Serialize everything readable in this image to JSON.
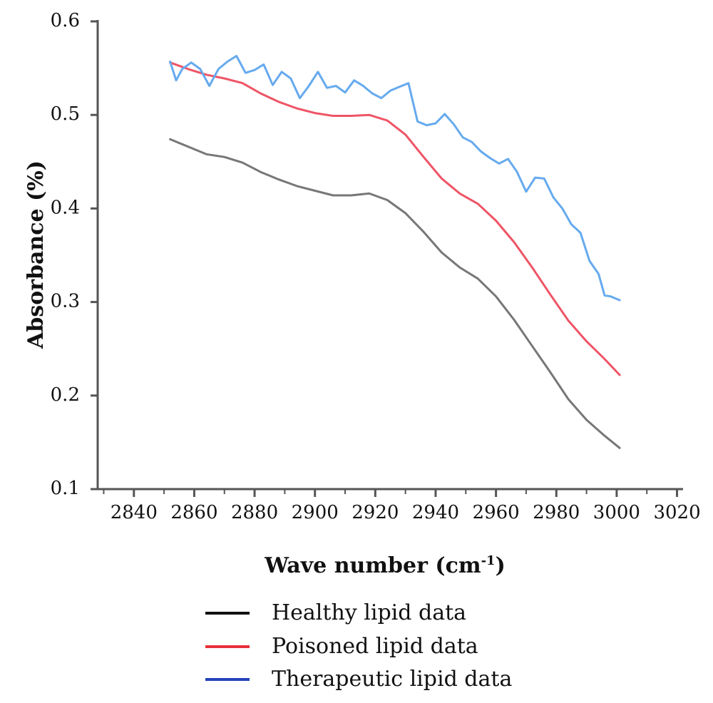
{
  "chart_data": {
    "type": "line",
    "xlabel": "Wave number (cm",
    "xlabel_superscript": "-1",
    "xlabel_close": ")",
    "ylabel": "Absorbance (%)",
    "xlim": [
      2828,
      3022
    ],
    "ylim": [
      0.1,
      0.6
    ],
    "xticks": [
      "2840",
      "2860",
      "2880",
      "2900",
      "2920",
      "2940",
      "2960",
      "2980",
      "3000",
      "3020"
    ],
    "yticks": [
      "0.1",
      "0.2",
      "0.3",
      "0.4",
      "0.5",
      "0.6"
    ],
    "grid": false,
    "legend_position": "bottom",
    "series": [
      {
        "name": "Healthy lipid data",
        "color": "#777777",
        "legend_color": "#111111",
        "x": [
          2852,
          2858,
          2864,
          2870,
          2876,
          2882,
          2888,
          2894,
          2900,
          2906,
          2912,
          2918,
          2924,
          2930,
          2936,
          2942,
          2948,
          2954,
          2960,
          2966,
          2972,
          2978,
          2984,
          2990,
          2996,
          3001
        ],
        "y": [
          0.474,
          0.466,
          0.458,
          0.455,
          0.449,
          0.439,
          0.431,
          0.424,
          0.419,
          0.414,
          0.414,
          0.416,
          0.409,
          0.395,
          0.375,
          0.353,
          0.337,
          0.325,
          0.306,
          0.281,
          0.253,
          0.225,
          0.196,
          0.174,
          0.157,
          0.144
        ]
      },
      {
        "name": "Poisoned lipid data",
        "color": "#ee5566",
        "legend_color": "#e8303a",
        "x": [
          2852,
          2858,
          2864,
          2870,
          2876,
          2882,
          2888,
          2894,
          2900,
          2906,
          2912,
          2918,
          2924,
          2930,
          2936,
          2942,
          2948,
          2954,
          2960,
          2966,
          2972,
          2978,
          2984,
          2990,
          2996,
          3001
        ],
        "y": [
          0.556,
          0.549,
          0.543,
          0.539,
          0.534,
          0.523,
          0.514,
          0.507,
          0.502,
          0.499,
          0.499,
          0.5,
          0.494,
          0.479,
          0.455,
          0.432,
          0.416,
          0.405,
          0.387,
          0.364,
          0.337,
          0.308,
          0.28,
          0.258,
          0.239,
          0.222
        ]
      },
      {
        "name": "Therapeutic lipid data",
        "color": "#66aaee",
        "legend_color": "#2244bb",
        "x": [
          2852,
          2854,
          2856,
          2859,
          2862,
          2865,
          2868,
          2871,
          2874,
          2877,
          2880,
          2883,
          2886,
          2889,
          2892,
          2895,
          2898,
          2901,
          2904,
          2907,
          2910,
          2913,
          2916,
          2919,
          2922,
          2925,
          2928,
          2931,
          2934,
          2937,
          2940,
          2943,
          2946,
          2949,
          2952,
          2955,
          2958,
          2961,
          2964,
          2967,
          2970,
          2973,
          2976,
          2979,
          2982,
          2985,
          2988,
          2991,
          2994,
          2996,
          2998,
          3001
        ],
        "y": [
          0.557,
          0.537,
          0.549,
          0.556,
          0.549,
          0.531,
          0.549,
          0.557,
          0.563,
          0.545,
          0.548,
          0.554,
          0.532,
          0.546,
          0.539,
          0.518,
          0.531,
          0.546,
          0.529,
          0.531,
          0.524,
          0.537,
          0.531,
          0.523,
          0.518,
          0.526,
          0.53,
          0.534,
          0.493,
          0.489,
          0.491,
          0.501,
          0.49,
          0.476,
          0.471,
          0.461,
          0.454,
          0.448,
          0.453,
          0.439,
          0.418,
          0.433,
          0.432,
          0.412,
          0.4,
          0.383,
          0.374,
          0.344,
          0.33,
          0.307,
          0.306,
          0.302
        ]
      }
    ]
  }
}
